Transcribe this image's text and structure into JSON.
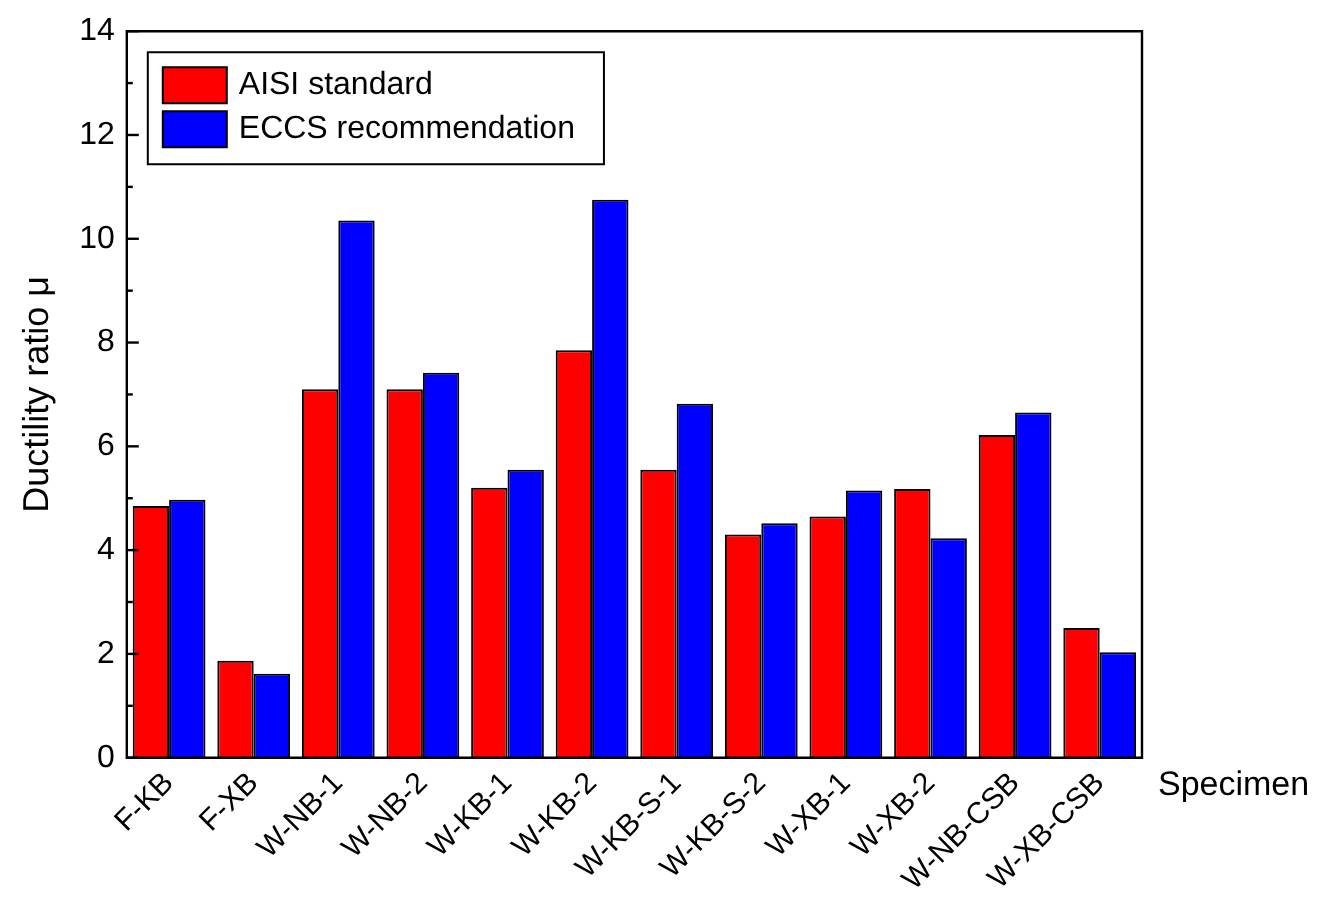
{
  "chart_data": {
    "type": "bar",
    "xlabel": "Specimen",
    "ylabel": "Ductility ratio μ",
    "categories": [
      "F-KB",
      "F-XB",
      "W-NB-1",
      "W-NB-2",
      "W-KB-1",
      "W-KB-2",
      "W-KB-S-1",
      "W-KB-S-2",
      "W-XB-1",
      "W-XB-2",
      "W-NB-CSB",
      "W-XB-CSB"
    ],
    "series": [
      {
        "name": "AISI standard",
        "color": "#ff0000",
        "values": [
          4.85,
          1.87,
          7.1,
          7.1,
          5.2,
          7.85,
          5.55,
          4.3,
          4.65,
          5.18,
          6.22,
          2.5
        ]
      },
      {
        "name": "ECCS recommendation",
        "color": "#0000ff",
        "values": [
          4.97,
          1.62,
          10.35,
          7.42,
          5.55,
          10.75,
          6.82,
          4.52,
          5.15,
          4.23,
          6.65,
          2.03
        ]
      }
    ],
    "ylim": [
      0,
      14
    ],
    "yticks": [
      0,
      2,
      4,
      6,
      8,
      10,
      12,
      14
    ],
    "grid": false,
    "legend": "top left"
  }
}
